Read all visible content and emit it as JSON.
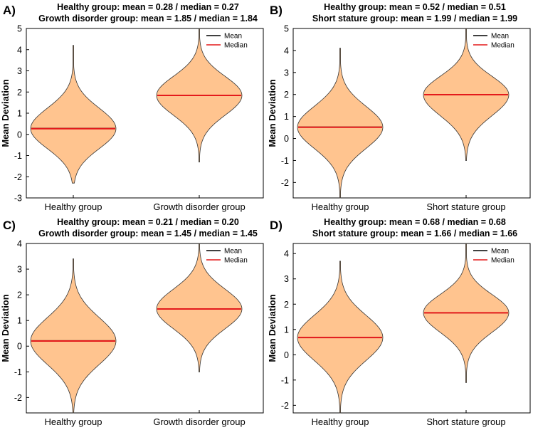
{
  "colors": {
    "violin_fill": "#ffc48f",
    "violin_stroke": "#333333",
    "mean_line": "#000000",
    "median_line": "#e41a1c",
    "axis": "#000000"
  },
  "chart_data": [
    {
      "type": "violin",
      "panel_label": "A)",
      "title_lines": [
        "Healthy group: mean = 0.28 / median = 0.27",
        "Growth disorder group: mean = 1.85 / median = 1.84"
      ],
      "ylabel": "Mean Deviation",
      "ylim": [
        -3,
        5
      ],
      "yticks": [
        -3,
        -2,
        -1,
        0,
        1,
        2,
        3,
        4,
        5
      ],
      "legend": [
        "Mean",
        "Median"
      ],
      "categories": [
        "Healthy group",
        "Growth disorder group"
      ],
      "groups": [
        {
          "name": "Healthy group",
          "mean": 0.28,
          "median": 0.27,
          "min": -2.3,
          "max": 4.2,
          "body_low": -2.0,
          "body_high": 2.6
        },
        {
          "name": "Growth disorder group",
          "mean": 1.85,
          "median": 1.84,
          "min": -1.3,
          "max": 5.0,
          "body_low": -0.4,
          "body_high": 4.0
        }
      ]
    },
    {
      "type": "violin",
      "panel_label": "B)",
      "title_lines": [
        "Healthy group: mean = 0.52 / median = 0.51",
        "Short stature group: mean = 1.99 / median = 1.99"
      ],
      "ylabel": "Mean Deviation",
      "ylim": [
        -2.7,
        5
      ],
      "yticks": [
        -2,
        -1,
        0,
        1,
        2,
        3,
        4,
        5
      ],
      "legend": [
        "Mean",
        "Median"
      ],
      "categories": [
        "Healthy group",
        "Short stature group"
      ],
      "groups": [
        {
          "name": "Healthy group",
          "mean": 0.52,
          "median": 0.51,
          "min": -2.7,
          "max": 4.1,
          "body_low": -1.8,
          "body_high": 2.8
        },
        {
          "name": "Short stature group",
          "mean": 1.99,
          "median": 1.99,
          "min": -1.0,
          "max": 5.0,
          "body_low": -0.3,
          "body_high": 4.0
        }
      ]
    },
    {
      "type": "violin",
      "panel_label": "C)",
      "title_lines": [
        "Healthy group: mean = 0.21 / median = 0.20",
        "Growth disorder group: mean = 1.45 / median = 1.45"
      ],
      "ylabel": "Mean Deviation",
      "ylim": [
        -2.6,
        4
      ],
      "yticks": [
        -2,
        -1,
        0,
        1,
        2,
        3,
        4
      ],
      "legend": [
        "Mean",
        "Median"
      ],
      "categories": [
        "Healthy group",
        "Growth disorder group"
      ],
      "groups": [
        {
          "name": "Healthy group",
          "mean": 0.21,
          "median": 0.2,
          "min": -2.6,
          "max": 3.4,
          "body_low": -2.0,
          "body_high": 2.4
        },
        {
          "name": "Growth disorder group",
          "mean": 1.45,
          "median": 1.45,
          "min": -1.0,
          "max": 4.0,
          "body_low": -0.4,
          "body_high": 3.3
        }
      ]
    },
    {
      "type": "violin",
      "panel_label": "D)",
      "title_lines": [
        "Healthy group: mean = 0.68 / median = 0.68",
        "Short stature group: mean = 1.66 / median = 1.66"
      ],
      "ylabel": "Mean Deviation",
      "ylim": [
        -2.3,
        4.4
      ],
      "yticks": [
        -2,
        -1,
        0,
        1,
        2,
        3,
        4
      ],
      "legend": [
        "Mean",
        "Median"
      ],
      "categories": [
        "Healthy group",
        "Short stature group"
      ],
      "groups": [
        {
          "name": "Healthy group",
          "mean": 0.68,
          "median": 0.68,
          "min": -2.3,
          "max": 3.7,
          "body_low": -1.5,
          "body_high": 2.8
        },
        {
          "name": "Short stature group",
          "mean": 1.66,
          "median": 1.66,
          "min": -1.1,
          "max": 4.4,
          "body_low": -0.2,
          "body_high": 3.4
        }
      ]
    }
  ]
}
